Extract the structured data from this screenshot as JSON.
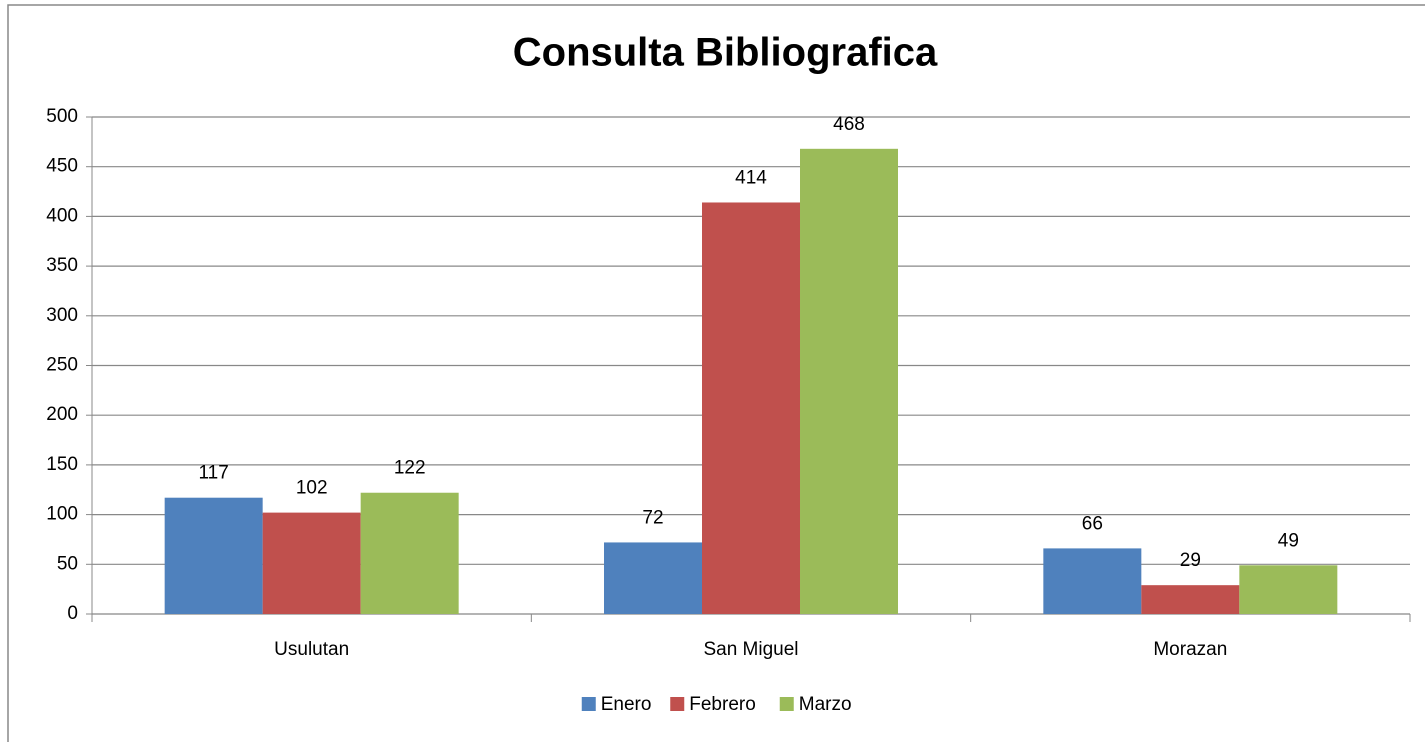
{
  "chart_data": {
    "type": "bar",
    "title": "Consulta Bibliografica",
    "categories": [
      "Usulutan",
      "San Miguel",
      "Morazan"
    ],
    "series": [
      {
        "name": "Enero",
        "color": "#4f81bd",
        "values": [
          117,
          72,
          66
        ]
      },
      {
        "name": "Febrero",
        "color": "#c0504d",
        "values": [
          102,
          414,
          29
        ]
      },
      {
        "name": "Marzo",
        "color": "#9bbb59",
        "values": [
          122,
          468,
          49
        ]
      }
    ],
    "ylim": [
      0,
      500
    ],
    "yticks": [
      0,
      50,
      100,
      150,
      200,
      250,
      300,
      350,
      400,
      450,
      500
    ],
    "grid": true,
    "legend": "bottom"
  }
}
